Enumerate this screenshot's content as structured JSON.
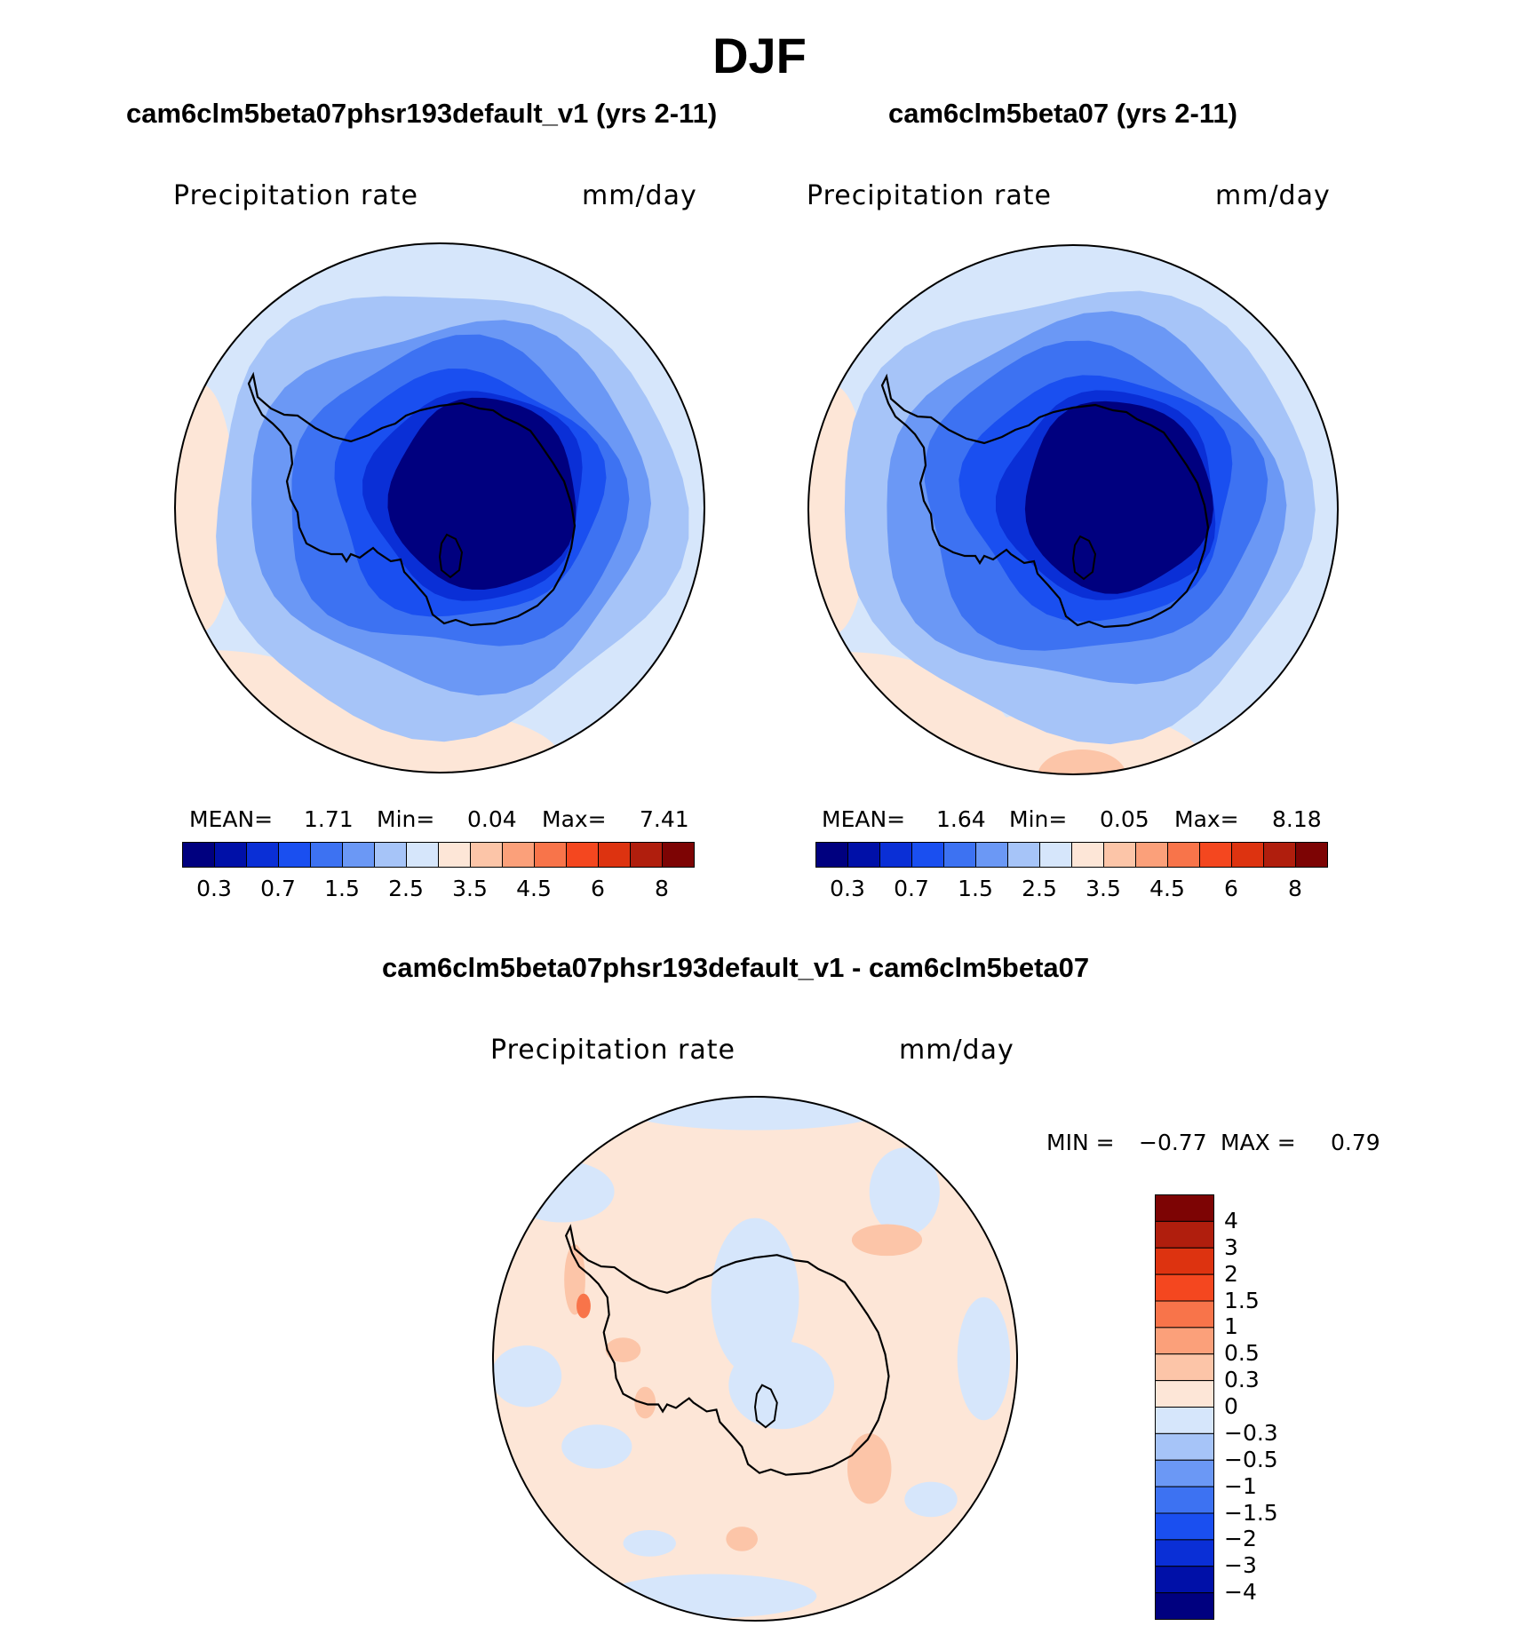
{
  "title": "DJF",
  "panels": [
    {
      "title": "cam6clm5beta07phsr193default_v1 (yrs 2-11)",
      "variable": "Precipitation rate",
      "units": "mm/day",
      "stats": {
        "mean_label": "MEAN=",
        "mean": "1.71",
        "min_label": "Min=",
        "min": "0.04",
        "max_label": "Max=",
        "max": "7.41"
      }
    },
    {
      "title": "cam6clm5beta07 (yrs 2-11)",
      "variable": "Precipitation rate",
      "units": "mm/day",
      "stats": {
        "mean_label": "MEAN=",
        "mean": "1.64",
        "min_label": "Min=",
        "min": "0.05",
        "max_label": "Max=",
        "max": "8.18"
      }
    }
  ],
  "abs_colorbar": {
    "colors": [
      "#00007f",
      "#0010a8",
      "#0a2fd6",
      "#1a4ff0",
      "#3d72f2",
      "#6b98f5",
      "#a6c4f8",
      "#d6e6fb",
      "#fde6d7",
      "#fcc5a8",
      "#fba07a",
      "#f8744a",
      "#f4471f",
      "#dd3310",
      "#b01e0d",
      "#7d0404"
    ],
    "labels": [
      "0.3",
      "0.7",
      "1.5",
      "2.5",
      "3.5",
      "4.5",
      "6",
      "8"
    ]
  },
  "difference": {
    "title": "cam6clm5beta07phsr193default_v1 - cam6clm5beta07",
    "variable": "Precipitation rate",
    "units": "mm/day",
    "min_label": "MIN =",
    "min": "−0.77",
    "max_label": "MAX =",
    "max": "0.79",
    "colorbar": {
      "colors_top_to_bottom": [
        "#7d0404",
        "#b01e0d",
        "#dd3310",
        "#f4471f",
        "#f8744a",
        "#fba07a",
        "#fcc5a8",
        "#fde6d7",
        "#d6e6fb",
        "#a6c4f8",
        "#6b98f5",
        "#3d72f2",
        "#1a4ff0",
        "#0a2fd6",
        "#0010a8",
        "#00007f"
      ],
      "labels_top_to_bottom": [
        "4",
        "3",
        "2",
        "1.5",
        "1",
        "0.5",
        "0.3",
        "0",
        "−0.3",
        "−0.5",
        "−1",
        "−1.5",
        "−2",
        "−3",
        "−4"
      ]
    }
  },
  "map_colors": {
    "ocean_outer": "#d6e6fb",
    "ring1": "#a6c4f8",
    "ring2": "#6b98f5",
    "ring3": "#3d72f2",
    "ring4": "#1a4ff0",
    "ring5": "#0a2fd6",
    "core": "#00007f",
    "warm": "#fde6d7",
    "warm2": "#fcc5a8",
    "hot": "#f8744a"
  }
}
